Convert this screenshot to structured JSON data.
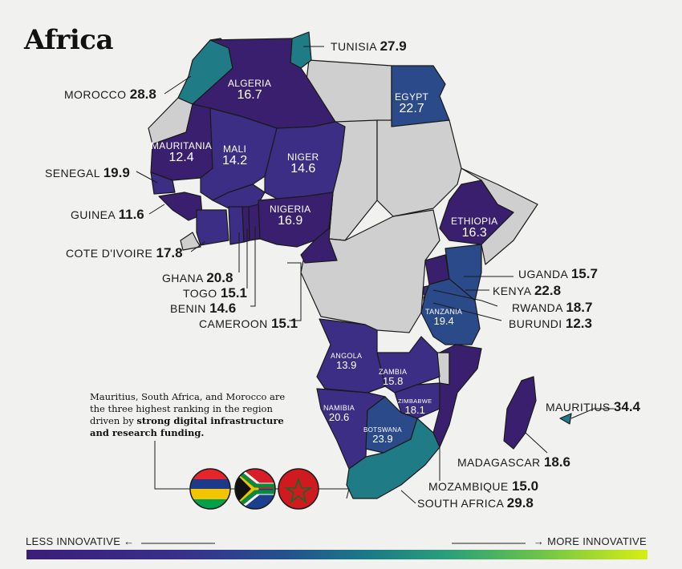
{
  "title": "Africa",
  "colors": {
    "low": "#3a1f6f",
    "mid_low": "#3b2e84",
    "mid": "#2b4a8a",
    "high": "#1f7b86",
    "no_data": "#cfcfcf",
    "background": "#f1f1ef"
  },
  "countries": {
    "tunisia": {
      "name": "TUNISIA",
      "score": "27.9"
    },
    "morocco": {
      "name": "MOROCCO",
      "score": "28.8"
    },
    "algeria": {
      "name": "ALGERIA",
      "score": "16.7"
    },
    "egypt": {
      "name": "EGYPT",
      "score": "22.7"
    },
    "mauritania": {
      "name": "MAURITANIA",
      "score": "12.4"
    },
    "mali": {
      "name": "MALI",
      "score": "14.2"
    },
    "niger": {
      "name": "NIGER",
      "score": "14.6"
    },
    "senegal": {
      "name": "SENEGAL",
      "score": "19.9"
    },
    "nigeria": {
      "name": "NIGERIA",
      "score": "16.9"
    },
    "guinea": {
      "name": "GUINEA",
      "score": "11.6"
    },
    "ethiopia": {
      "name": "ETHIOPIA",
      "score": "16.3"
    },
    "cote_divoire": {
      "name": "COTE D'IVOIRE",
      "score": "17.8"
    },
    "ghana": {
      "name": "GHANA",
      "score": "20.8"
    },
    "togo": {
      "name": "TOGO",
      "score": "15.1"
    },
    "benin": {
      "name": "BENIN",
      "score": "14.6"
    },
    "cameroon": {
      "name": "CAMEROON",
      "score": "15.1"
    },
    "uganda": {
      "name": "UGANDA",
      "score": "15.7"
    },
    "kenya": {
      "name": "KENYA",
      "score": "22.8"
    },
    "rwanda": {
      "name": "RWANDA",
      "score": "18.7"
    },
    "burundi": {
      "name": "BURUNDI",
      "score": "12.3"
    },
    "tanzania": {
      "name": "TANZANIA",
      "score": "19.4"
    },
    "angola": {
      "name": "ANGOLA",
      "score": "13.9"
    },
    "zambia": {
      "name": "ZAMBIA",
      "score": "15.8"
    },
    "zimbabwe": {
      "name": "ZIMBABWE",
      "score": "18.1"
    },
    "namibia": {
      "name": "NAMIBIA",
      "score": "20.6"
    },
    "botswana": {
      "name": "BOTSWANA",
      "score": "23.9"
    },
    "mauritius": {
      "name": "MAURITIUS",
      "score": "34.4"
    },
    "madagascar": {
      "name": "MADAGASCAR",
      "score": "18.6"
    },
    "mozambique": {
      "name": "MOZAMBIQUE",
      "score": "15.0"
    },
    "south_africa": {
      "name": "SOUTH AFRICA",
      "score": "29.8"
    }
  },
  "note": {
    "line_plain": "Mauritius, South Africa, and Morocco are the three highest ranking in the region driven by ",
    "line_bold": "strong digital infrastructure and research funding."
  },
  "flags": [
    "mauritius-flag",
    "south-africa-flag",
    "morocco-flag"
  ],
  "legend": {
    "left": "LESS INNOVATIVE",
    "right": "MORE INNOVATIVE",
    "left_arrow": "←",
    "right_arrow": "→"
  }
}
